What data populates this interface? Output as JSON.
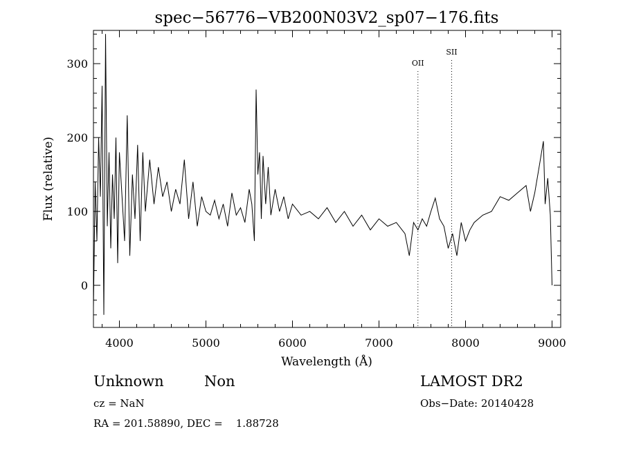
{
  "chart_data": {
    "type": "line",
    "title": "spec−56776−VB200N03V2_sp07−176.fits",
    "xlabel": "Wavelength (Å)",
    "ylabel": "Flux (relative)",
    "xlim": [
      3700,
      9100
    ],
    "ylim": [
      -57,
      345
    ],
    "x_ticks": [
      4000,
      5000,
      6000,
      7000,
      8000,
      9000
    ],
    "x_tick_labels": [
      "4000",
      "5000",
      "6000",
      "7000",
      "8000",
      "9000"
    ],
    "y_ticks": [
      0,
      100,
      200,
      300
    ],
    "y_tick_labels": [
      "0",
      "100",
      "200",
      "300"
    ],
    "grid": false,
    "line_color": "#000000",
    "series": [
      {
        "x": [
          3700,
          3720,
          3740,
          3760,
          3780,
          3800,
          3820,
          3840,
          3860,
          3880,
          3900,
          3920,
          3940,
          3960,
          3980,
          4000,
          4030,
          4060,
          4090,
          4120,
          4150,
          4180,
          4210,
          4240,
          4270,
          4300,
          4350,
          4400,
          4450,
          4500,
          4550,
          4600,
          4650,
          4700,
          4750,
          4800,
          4850,
          4900,
          4950,
          5000,
          5050,
          5100,
          5150,
          5200,
          5250,
          5300,
          5350,
          5400,
          5450,
          5500,
          5530,
          5560,
          5580,
          5600,
          5620,
          5640,
          5660,
          5690,
          5720,
          5750,
          5800,
          5850,
          5900,
          5950,
          6000,
          6100,
          6200,
          6300,
          6400,
          6500,
          6600,
          6700,
          6800,
          6900,
          7000,
          7100,
          7200,
          7300,
          7350,
          7400,
          7450,
          7500,
          7550,
          7600,
          7650,
          7700,
          7750,
          7800,
          7850,
          7900,
          7950,
          8000,
          8050,
          8100,
          8200,
          8300,
          8400,
          8500,
          8600,
          8700,
          8750,
          8800,
          8850,
          8900,
          8920,
          8950,
          8980,
          9000
        ],
        "y": [
          -30,
          140,
          60,
          200,
          120,
          270,
          -40,
          340,
          80,
          180,
          50,
          150,
          90,
          200,
          30,
          180,
          120,
          60,
          230,
          40,
          150,
          90,
          190,
          60,
          180,
          100,
          170,
          110,
          160,
          120,
          140,
          100,
          130,
          110,
          170,
          90,
          140,
          80,
          120,
          100,
          95,
          115,
          90,
          110,
          80,
          125,
          95,
          105,
          85,
          130,
          110,
          60,
          265,
          150,
          180,
          90,
          175,
          110,
          160,
          95,
          130,
          100,
          120,
          90,
          110,
          95,
          100,
          90,
          105,
          85,
          100,
          80,
          95,
          75,
          90,
          80,
          85,
          70,
          40,
          85,
          75,
          90,
          80,
          100,
          118,
          90,
          80,
          50,
          70,
          40,
          85,
          60,
          75,
          85,
          95,
          100,
          120,
          115,
          125,
          135,
          100,
          125,
          160,
          195,
          110,
          145,
          95,
          0
        ]
      }
    ],
    "annotations": [
      {
        "label": "OII",
        "x": 7450
      },
      {
        "label": "SII",
        "x": 7840
      }
    ]
  },
  "footer": {
    "object_class": "Unknown",
    "object_subclass": "Non",
    "survey": "LAMOST DR2",
    "redshift": "cz = NaN",
    "obs_date": "Obs−Date: 20140428",
    "coords": "RA = 201.58890, DEC =    1.88728"
  }
}
